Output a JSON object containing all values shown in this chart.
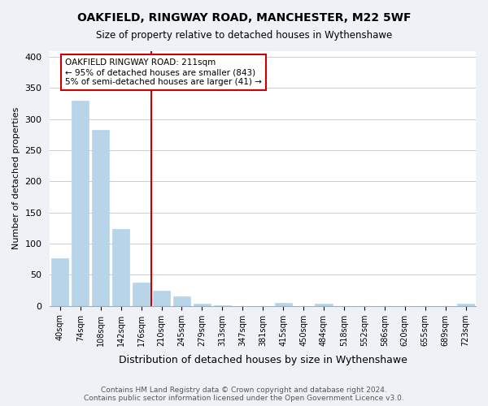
{
  "title": "OAKFIELD, RINGWAY ROAD, MANCHESTER, M22 5WF",
  "subtitle": "Size of property relative to detached houses in Wythenshawe",
  "xlabel": "Distribution of detached houses by size in Wythenshawe",
  "ylabel": "Number of detached properties",
  "bar_labels": [
    "40sqm",
    "74sqm",
    "108sqm",
    "142sqm",
    "176sqm",
    "210sqm",
    "245sqm",
    "279sqm",
    "313sqm",
    "347sqm",
    "381sqm",
    "415sqm",
    "450sqm",
    "484sqm",
    "518sqm",
    "552sqm",
    "586sqm",
    "620sqm",
    "655sqm",
    "689sqm",
    "723sqm"
  ],
  "bar_values": [
    77,
    330,
    283,
    123,
    38,
    25,
    15,
    4,
    1,
    0,
    0,
    5,
    0,
    3,
    0,
    0,
    0,
    0,
    0,
    0,
    3
  ],
  "bar_color": "#b8d4e8",
  "vline_color": "#cc0000",
  "annotation_title": "OAKFIELD RINGWAY ROAD: 211sqm",
  "annotation_line1": "← 95% of detached houses are smaller (843)",
  "annotation_line2": "5% of semi-detached houses are larger (41) →",
  "annotation_box_color": "#cc0000",
  "ylim": [
    0,
    410
  ],
  "yticks": [
    0,
    50,
    100,
    150,
    200,
    250,
    300,
    350,
    400
  ],
  "footer1": "Contains HM Land Registry data © Crown copyright and database right 2024.",
  "footer2": "Contains public sector information licensed under the Open Government Licence v3.0.",
  "bg_color": "#eef2f7",
  "plot_bg_color": "#ffffff"
}
